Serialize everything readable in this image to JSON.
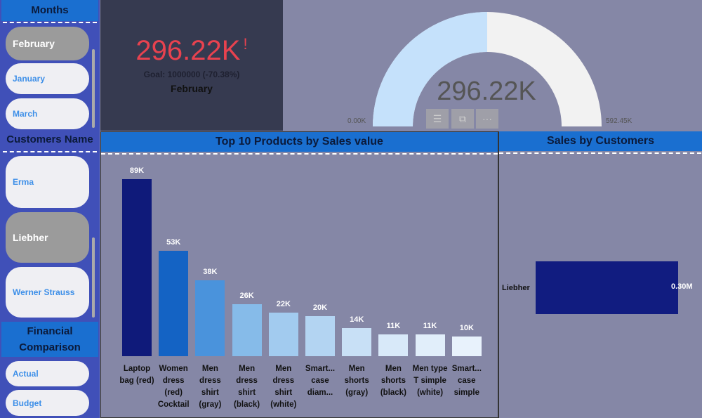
{
  "sidebar": {
    "months": {
      "title": "Months",
      "items": [
        {
          "label": "February",
          "selected": true
        },
        {
          "label": "January",
          "selected": false
        },
        {
          "label": "March",
          "selected": false
        }
      ]
    },
    "customers": {
      "title": "Customers Name",
      "items": [
        {
          "label": "Erma",
          "selected": false
        },
        {
          "label": "Liebher",
          "selected": true
        },
        {
          "label": "Werner Strauss",
          "selected": false
        }
      ]
    },
    "financial": {
      "title": "Financial Comparison",
      "items": [
        {
          "label": "Actual"
        },
        {
          "label": "Budget"
        }
      ]
    }
  },
  "kpi": {
    "value": "296.22K",
    "alert": "!",
    "goal": "Goal: 1000000 (-70.38%)",
    "month": "February",
    "value_color": "#e8424f"
  },
  "gauge": {
    "value_label": "296.22K",
    "min_label": "0.00K",
    "max_label": "592.45K",
    "value": 296.22,
    "min": 0,
    "max": 592.45,
    "fill_color": "#c5e1fb",
    "track_color": "#f2f2f2",
    "buttons": [
      {
        "icon": "filter-icon",
        "glyph": "☰"
      },
      {
        "icon": "focus-mode-icon",
        "glyph": "⧉"
      },
      {
        "icon": "more-options-icon",
        "glyph": "···"
      }
    ]
  },
  "chart_data": [
    {
      "type": "bar",
      "title": "Top 10 Products by Sales value",
      "categories": [
        "Laptop bag (red)",
        "Women dress (red) Cocktail",
        "Men dress shirt (gray)",
        "Men dress shirt (black)",
        "Men dress shirt (white)",
        "Smart... case diam...",
        "Men shorts (gray)",
        "Men shorts (black)",
        "Men type T simple (white)",
        "Smart... case simple"
      ],
      "values": [
        89,
        53,
        38,
        26,
        22,
        20,
        14,
        11,
        11,
        10
      ],
      "data_labels": [
        "89K",
        "53K",
        "38K",
        "26K",
        "22K",
        "20K",
        "14K",
        "11K",
        "11K",
        "10K"
      ],
      "colors": [
        "#0f1a7a",
        "#1463c4",
        "#4a93dc",
        "#86bbe9",
        "#a2cbef",
        "#b3d4f2",
        "#c8e0f6",
        "#d8e9f9",
        "#e1eefa",
        "#e8f2fc"
      ]
    },
    {
      "type": "bar",
      "orientation": "horizontal",
      "title": "Sales by Customers",
      "categories": [
        "Liebher"
      ],
      "values": [
        0.3
      ],
      "data_labels": [
        "0.30M"
      ],
      "colors": [
        "#111c80"
      ]
    }
  ]
}
